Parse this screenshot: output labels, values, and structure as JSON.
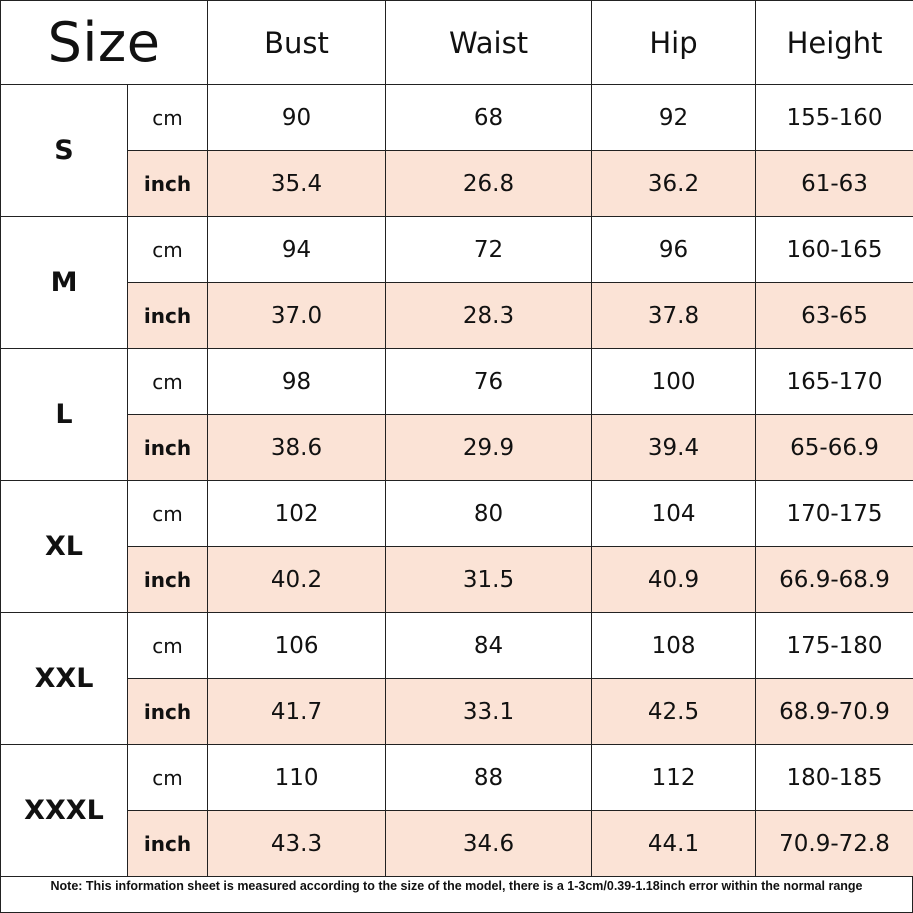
{
  "header": {
    "corner": "Size",
    "columns": [
      "Bust",
      "Waist",
      "Hip",
      "Height"
    ]
  },
  "sizes": [
    {
      "size": "S",
      "cm_label": "cm",
      "inch_label": "inch",
      "cm": [
        "90",
        "68",
        "92",
        "155-160"
      ],
      "inch": [
        "35.4",
        "26.8",
        "36.2",
        "61-63"
      ]
    },
    {
      "size": "M",
      "cm_label": "cm",
      "inch_label": "inch",
      "cm": [
        "94",
        "72",
        "96",
        "160-165"
      ],
      "inch": [
        "37.0",
        "28.3",
        "37.8",
        "63-65"
      ]
    },
    {
      "size": "L",
      "cm_label": "cm",
      "inch_label": "inch",
      "cm": [
        "98",
        "76",
        "100",
        "165-170"
      ],
      "inch": [
        "38.6",
        "29.9",
        "39.4",
        "65-66.9"
      ]
    },
    {
      "size": "XL",
      "cm_label": "cm",
      "inch_label": "inch",
      "cm": [
        "102",
        "80",
        "104",
        "170-175"
      ],
      "inch": [
        "40.2",
        "31.5",
        "40.9",
        "66.9-68.9"
      ]
    },
    {
      "size": "XXL",
      "cm_label": "cm",
      "inch_label": "inch",
      "cm": [
        "106",
        "84",
        "108",
        "175-180"
      ],
      "inch": [
        "41.7",
        "33.1",
        "42.5",
        "68.9-70.9"
      ]
    },
    {
      "size": "XXXL",
      "cm_label": "cm",
      "inch_label": "inch",
      "cm": [
        "110",
        "88",
        "112",
        "180-185"
      ],
      "inch": [
        "43.3",
        "34.6",
        "44.1",
        "70.9-72.8"
      ]
    }
  ],
  "note": "Note: This information sheet is measured according to the size of the model, there is a 1-3cm/0.39-1.18inch error within the normal range",
  "colors": {
    "inch_row_fill": "#fbe3d6",
    "border": "#222222"
  }
}
